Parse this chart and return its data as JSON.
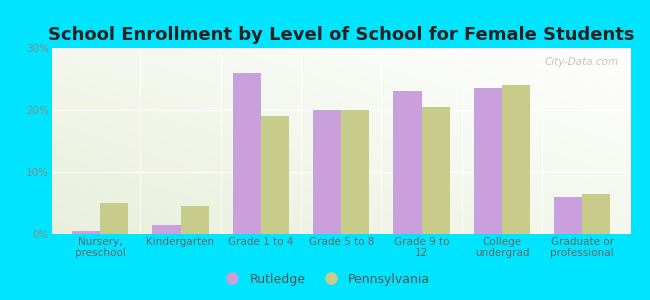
{
  "title": "School Enrollment by Level of School for Female Students",
  "categories": [
    "Nursery,\npreschool",
    "Kindergarten",
    "Grade 1 to 4",
    "Grade 5 to 8",
    "Grade 9 to\n12",
    "College\nundergrad",
    "Graduate or\nprofessional"
  ],
  "rutledge": [
    0.5,
    1.5,
    26.0,
    20.0,
    23.0,
    23.5,
    6.0
  ],
  "pennsylvania": [
    5.0,
    4.5,
    19.0,
    20.0,
    20.5,
    24.0,
    6.5
  ],
  "rutledge_color": "#c9a0dc",
  "pennsylvania_color": "#c8cc8a",
  "background_color": "#00e5ff",
  "plot_bg_color1": "#e8f0dc",
  "plot_bg_color2": "#ffffff",
  "ylabel_ticks": [
    "0%",
    "10%",
    "20%",
    "30%"
  ],
  "ytick_vals": [
    0,
    10,
    20,
    30
  ],
  "ylim": [
    0,
    30
  ],
  "bar_width": 0.35,
  "title_fontsize": 13,
  "tick_fontsize": 7.5,
  "legend_fontsize": 9,
  "watermark": "City-Data.com"
}
